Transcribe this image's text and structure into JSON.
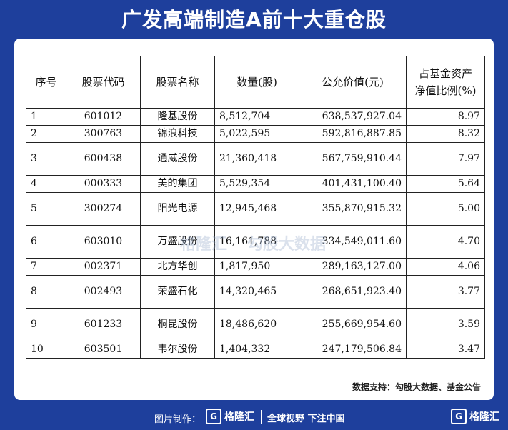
{
  "title": "广发高端制造A前十大重仓股",
  "table": {
    "headers": [
      "序号",
      "股票代码",
      "股票名称",
      "数量(股)",
      "公允价值(元)",
      "占基金资产净值比例(%)"
    ],
    "header_ratio_line1": "占基金资产",
    "header_ratio_line2": "净值比例(%)",
    "rows": [
      {
        "no": "1",
        "code": "601012",
        "name": "隆基股份",
        "qty": "8,512,704",
        "value": "638,537,927.04",
        "ratio": "8.97"
      },
      {
        "no": "2",
        "code": "300763",
        "name": "锦浪科技",
        "qty": "5,022,595",
        "value": "592,816,887.85",
        "ratio": "8.32"
      },
      {
        "no": "3",
        "code": "600438",
        "name": "通威股份",
        "qty": "21,360,418",
        "value": "567,759,910.44",
        "ratio": "7.97"
      },
      {
        "no": "4",
        "code": "000333",
        "name": "美的集团",
        "qty": "5,529,354",
        "value": "401,431,100.40",
        "ratio": "5.64"
      },
      {
        "no": "5",
        "code": "300274",
        "name": "阳光电源",
        "qty": "12,945,468",
        "value": "355,870,915.32",
        "ratio": "5.00"
      },
      {
        "no": "6",
        "code": "603010",
        "name": "万盛股份",
        "qty": "16,161,788",
        "value": "334,549,011.60",
        "ratio": "4.70"
      },
      {
        "no": "7",
        "code": "002371",
        "name": "北方华创",
        "qty": "1,817,950",
        "value": "289,163,127.00",
        "ratio": "4.06"
      },
      {
        "no": "8",
        "code": "002493",
        "name": "荣盛石化",
        "qty": "14,320,465",
        "value": "268,651,923.40",
        "ratio": "3.77"
      },
      {
        "no": "9",
        "code": "601233",
        "name": "桐昆股份",
        "qty": "18,486,620",
        "value": "255,669,954.60",
        "ratio": "3.59"
      },
      {
        "no": "10",
        "code": "603501",
        "name": "韦尔股份",
        "qty": "1,404,332",
        "value": "247,179,506.84",
        "ratio": "3.47"
      }
    ]
  },
  "source": "数据支持：勾股大数据、基金公告",
  "watermark": {
    "left": "格隆汇",
    "right": "勾股大数据"
  },
  "footer": {
    "made_by": "图片制作：",
    "logo_text": "格隆汇",
    "logo_mark": "G",
    "slogan": "全球视野 下注中国"
  },
  "corner_logo": {
    "mark": "G",
    "text": "格隆汇"
  },
  "colors": {
    "background": "#1e3f9c",
    "card": "#ffffff"
  }
}
